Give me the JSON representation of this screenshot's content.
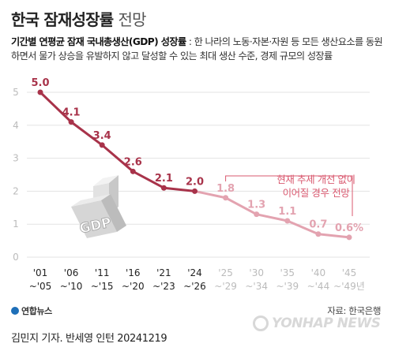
{
  "header": {
    "title_main": "한국 잠재성장률",
    "title_sub": "전망",
    "desc_bold": "기간별 연평균 잠재 국내총생산(GDP) 성장률",
    "desc_rest": " : 한 나라의 노동·자본·자원 등 모든 생산요소를 동원하면서 물가 상승을 유발하지 않고 달성할 수 있는 최대 생산 수준, 경제 규모의 성장률"
  },
  "chart_data": {
    "type": "line",
    "title": "한국 잠재성장률 전망",
    "categories": [
      "'01~'05",
      "'06~'10",
      "'11~'15",
      "'16~'20",
      "'21~'23",
      "'24~'26",
      "'25~'29",
      "'30~'34",
      "'35~'39",
      "'40~'44",
      "'45~'49년"
    ],
    "category_labels": [
      [
        "'01",
        "~'05"
      ],
      [
        "'06",
        "~'10"
      ],
      [
        "'11",
        "~'15"
      ],
      [
        "'16",
        "~'20"
      ],
      [
        "'21",
        "~'23"
      ],
      [
        "'24",
        "~'26"
      ],
      [
        "'25",
        "~'29"
      ],
      [
        "'30",
        "~'34"
      ],
      [
        "'35",
        "~'39"
      ],
      [
        "'40",
        "~'44"
      ],
      [
        "'45",
        "~'49년"
      ]
    ],
    "series": [
      {
        "name": "",
        "values": [
          5.0,
          4.1,
          3.4,
          2.6,
          2.1,
          2.0,
          null,
          null,
          null,
          null,
          null
        ],
        "color": "#a8334a"
      },
      {
        "name": "",
        "values": [
          null,
          null,
          null,
          null,
          null,
          2.0,
          1.8,
          1.3,
          1.1,
          0.7,
          0.6
        ],
        "color": "#e3a3b0"
      }
    ],
    "value_labels": [
      "5.0",
      "4.1",
      "3.4",
      "2.6",
      "2.1",
      "2.0",
      "1.8",
      "1.3",
      "1.1",
      "0.7",
      "0.6%"
    ],
    "y_ticks": [
      "0",
      "1",
      "2",
      "3",
      "4",
      "5"
    ],
    "ylim": [
      0,
      5.3
    ],
    "grid": true,
    "annotation": [
      "현재 추세 개선 없이",
      "이어질 경우 전망"
    ],
    "colors": {
      "actual": "#a8334a",
      "forecast": "#e3a3b0",
      "annotation": "#d9596f",
      "grid": "#e3e3e3"
    },
    "illustration_text": "GDP"
  },
  "footer": {
    "logo": "연합뉴스",
    "source": "자료: 한국은행",
    "byline": "김민지 기자. 반세영 인턴  20241219",
    "watermark": "YONHAP NEWS"
  }
}
